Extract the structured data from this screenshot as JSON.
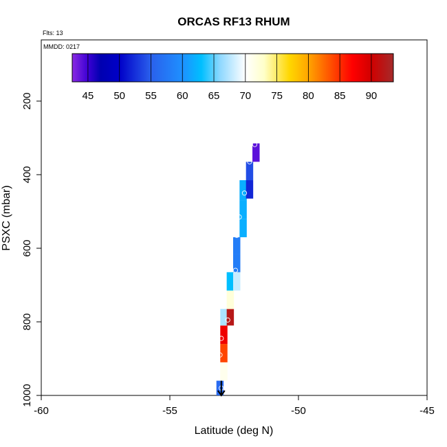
{
  "chart_data": {
    "type": "heatmap",
    "title": "ORCAS RF13 RHUM",
    "flights_label": "Flts: 13",
    "date_label": "MMDD: 0217",
    "xlabel": "Latitude (deg N)",
    "ylabel": "PSXC (mbar)",
    "xlim": [
      -60,
      -45
    ],
    "ylim": [
      1000,
      0
    ],
    "x_ticks": [
      -60,
      -55,
      -50,
      -45
    ],
    "y_ticks": [
      200,
      400,
      600,
      800,
      1000
    ],
    "grid": false,
    "colorbar": {
      "placement": "top",
      "range": [
        42.5,
        93.5
      ],
      "tick_values": [
        45,
        50,
        55,
        60,
        65,
        70,
        75,
        80,
        85,
        90
      ],
      "stops": [
        {
          "v": 42.5,
          "color": "#8a2be2"
        },
        {
          "v": 45,
          "color": "#3c00d4"
        },
        {
          "v": 47,
          "color": "#0000b0"
        },
        {
          "v": 50,
          "color": "#0000c8"
        },
        {
          "v": 55,
          "color": "#2a60ec"
        },
        {
          "v": 60,
          "color": "#1e90ff"
        },
        {
          "v": 63,
          "color": "#00bfff"
        },
        {
          "v": 66,
          "color": "#8fd8ff"
        },
        {
          "v": 70,
          "color": "#ffffff"
        },
        {
          "v": 73,
          "color": "#ffffc8"
        },
        {
          "v": 77,
          "color": "#ffd700"
        },
        {
          "v": 80,
          "color": "#ffa500"
        },
        {
          "v": 84,
          "color": "#ff4500"
        },
        {
          "v": 87,
          "color": "#ff0000"
        },
        {
          "v": 90,
          "color": "#d00000"
        },
        {
          "v": 93.5,
          "color": "#a52a2a"
        }
      ]
    },
    "cells": [
      {
        "lat": -53.05,
        "p_top": 960,
        "p_bot": 1000,
        "rhum": 56
      },
      {
        "lat": -52.9,
        "p_top": 910,
        "p_bot": 960,
        "rhum": 71
      },
      {
        "lat": -52.9,
        "p_top": 860,
        "p_bot": 910,
        "rhum": 84
      },
      {
        "lat": -52.9,
        "p_top": 810,
        "p_bot": 860,
        "rhum": 88
      },
      {
        "lat": -52.9,
        "p_top": 765,
        "p_bot": 810,
        "rhum": 67
      },
      {
        "lat": -52.65,
        "p_top": 765,
        "p_bot": 810,
        "rhum": 92
      },
      {
        "lat": -52.65,
        "p_top": 715,
        "p_bot": 765,
        "rhum": 72
      },
      {
        "lat": -52.65,
        "p_top": 665,
        "p_bot": 715,
        "rhum": 63
      },
      {
        "lat": -52.4,
        "p_top": 665,
        "p_bot": 715,
        "rhum": 68
      },
      {
        "lat": -52.4,
        "p_top": 615,
        "p_bot": 665,
        "rhum": 58
      },
      {
        "lat": -52.4,
        "p_top": 570,
        "p_bot": 615,
        "rhum": 58
      },
      {
        "lat": -52.15,
        "p_top": 520,
        "p_bot": 570,
        "rhum": 62
      },
      {
        "lat": -52.15,
        "p_top": 470,
        "p_bot": 520,
        "rhum": 62
      },
      {
        "lat": -52.15,
        "p_top": 415,
        "p_bot": 470,
        "rhum": 62
      },
      {
        "lat": -51.9,
        "p_top": 415,
        "p_bot": 465,
        "rhum": 52
      },
      {
        "lat": -51.9,
        "p_top": 365,
        "p_bot": 415,
        "rhum": 54
      },
      {
        "lat": -51.65,
        "p_top": 315,
        "p_bot": 365,
        "rhum": 44
      }
    ],
    "track_points": [
      {
        "lat": -53.0,
        "p": 980
      },
      {
        "lat": -53.05,
        "p": 890
      },
      {
        "lat": -53.0,
        "p": 845
      },
      {
        "lat": -52.75,
        "p": 795
      },
      {
        "lat": -52.45,
        "p": 660
      },
      {
        "lat": -52.4,
        "p": 565
      },
      {
        "lat": -52.3,
        "p": 515
      },
      {
        "lat": -52.1,
        "p": 450
      },
      {
        "lat": -51.9,
        "p": 365
      },
      {
        "lat": -51.7,
        "p": 318
      }
    ],
    "arrow": {
      "lat": -53.0,
      "p_from": 960,
      "p_to": 1000
    }
  }
}
